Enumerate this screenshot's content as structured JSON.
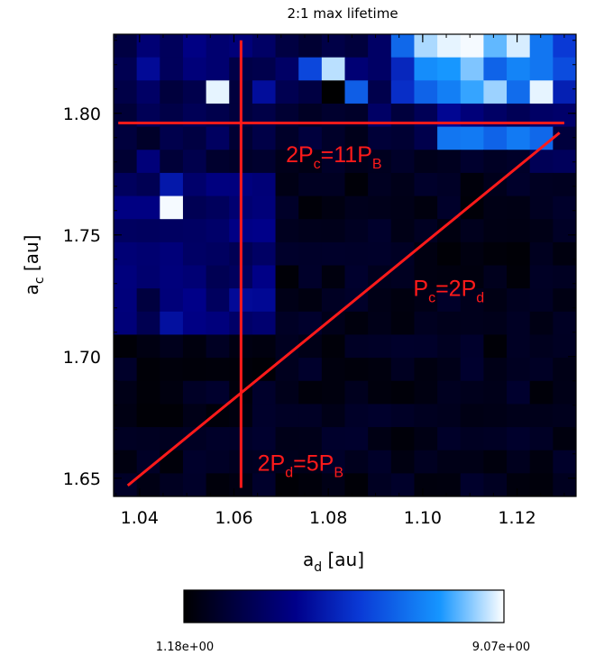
{
  "chart_data": {
    "type": "heatmap",
    "title": "2:1 max lifetime",
    "xlabel": "a",
    "xlabel_sub": "d",
    "xlabel_unit": "[au]",
    "ylabel": "a",
    "ylabel_sub": "c",
    "ylabel_unit": "[au]",
    "xlim": [
      1.0345,
      1.1325
    ],
    "ylim": [
      1.6425,
      1.8325
    ],
    "xticks": [
      1.04,
      1.06,
      1.08,
      1.1,
      1.12
    ],
    "xtick_labels": [
      "1.04",
      "1.06",
      "1.08",
      "1.10",
      "1.12"
    ],
    "yticks": [
      1.65,
      1.7,
      1.75,
      1.8
    ],
    "ytick_labels": [
      "1.65",
      "1.70",
      "1.75",
      "1.80"
    ],
    "grid": false,
    "colorbar": {
      "min_label": "1.18e+00",
      "max_label": "9.07e+00",
      "min": 1.18,
      "max": 9.07,
      "stops": [
        "#000000",
        "#00008a",
        "#0a3ad6",
        "#1696ff",
        "#ffffff"
      ]
    },
    "grid_shape": {
      "nx": 20,
      "ny": 20
    },
    "bright_rows_top": [
      [
        2.5,
        3.5,
        3.0,
        3.8,
        3.4,
        3.6,
        3.2,
        2.5,
        2.2,
        2.6,
        2.4,
        3.2,
        6.5,
        8.5,
        8.9,
        9.0,
        8.0,
        8.8,
        6.8,
        5.5
      ],
      [
        2.8,
        4.2,
        3.0,
        3.6,
        3.4,
        2.6,
        2.7,
        3.2,
        5.8,
        8.6,
        3.5,
        3.2,
        5.0,
        7.3,
        7.5,
        8.2,
        6.4,
        7.1,
        6.8,
        5.9
      ],
      [
        2.6,
        3.2,
        2.4,
        2.7,
        8.9,
        2.4,
        4.3,
        2.8,
        2.5,
        1.2,
        6.3,
        2.7,
        5.2,
        6.4,
        7.0,
        7.7,
        8.4,
        6.6,
        8.9,
        4.8
      ],
      [
        2.3,
        2.9,
        2.6,
        2.9,
        2.7,
        2.4,
        2.6,
        2.2,
        1.9,
        2.1,
        2.0,
        3.2,
        2.4,
        2.9,
        4.1,
        3.6,
        3.2,
        2.9,
        3.2,
        3.3
      ],
      [
        2.4,
        2.0,
        2.7,
        2.5,
        3.1,
        2.2,
        2.6,
        2.0,
        2.4,
        2.0,
        1.7,
        2.3,
        2.2,
        2.7,
        6.8,
        6.9,
        6.4,
        6.9,
        6.5,
        2.4
      ],
      [
        2.2,
        3.6,
        2.3,
        2.7,
        2.1,
        2.0,
        2.1,
        1.7,
        1.6,
        2.0,
        1.7,
        1.8,
        2.0,
        1.7,
        1.8,
        2.1,
        1.9,
        2.0,
        2.9,
        3.0
      ]
    ],
    "lines": [
      {
        "label": "2P",
        "label_sub_1": "c",
        "label_mid": "=11P",
        "label_sub_2": "B",
        "x1": 1.0355,
        "y1": 1.796,
        "x2": 1.13,
        "y2": 1.796
      },
      {
        "label": "P",
        "label_sub_1": "c",
        "label_mid": "=2P",
        "label_sub_2": "d",
        "x1": 1.0375,
        "y1": 1.647,
        "x2": 1.129,
        "y2": 1.792
      },
      {
        "label": "2P",
        "label_sub_1": "d",
        "label_mid": "=5P",
        "label_sub_2": "B",
        "x1": 1.0615,
        "y1": 1.646,
        "x2": 1.0615,
        "y2": 1.83
      }
    ],
    "annotations": [
      {
        "name": "label-2pc-11pb",
        "x": 1.071,
        "y": 1.78
      },
      {
        "name": "label-pc-2pd",
        "x": 1.098,
        "y": 1.725
      },
      {
        "name": "label-2pd-5pb",
        "x": 1.065,
        "y": 1.653
      }
    ]
  }
}
